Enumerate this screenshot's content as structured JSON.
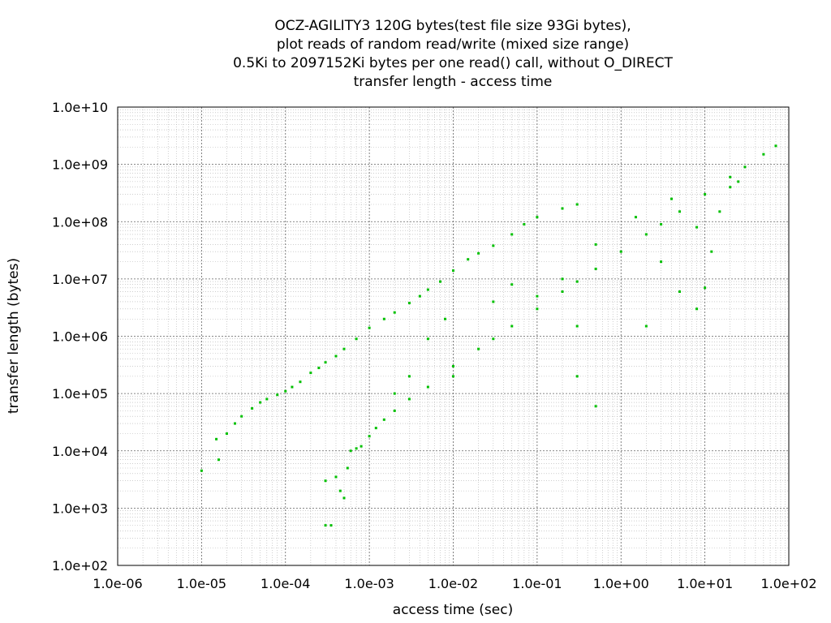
{
  "chart_data": {
    "type": "scatter",
    "title_lines": [
      "OCZ-AGILITY3 120G bytes(test file size 93Gi bytes),",
      "plot reads of random read/write (mixed size range)",
      "0.5Ki to 2097152Ki bytes per one read() call, without O_DIRECT",
      "transfer length - access time"
    ],
    "xlabel": "access time (sec)",
    "ylabel": "transfer length (bytes)",
    "x_scale": "log",
    "y_scale": "log",
    "xlim": [
      1e-06,
      100
    ],
    "ylim": [
      100,
      10000000000.0
    ],
    "x_ticks": [
      "1.0e-06",
      "1.0e-05",
      "1.0e-04",
      "1.0e-03",
      "1.0e-02",
      "1.0e-01",
      "1.0e+00",
      "1.0e+01",
      "1.0e+02"
    ],
    "y_ticks": [
      "1.0e+02",
      "1.0e+03",
      "1.0e+04",
      "1.0e+05",
      "1.0e+06",
      "1.0e+07",
      "1.0e+08",
      "1.0e+09",
      "1.0e+10"
    ],
    "grid": true,
    "series_color": "#00c000",
    "series": [
      {
        "name": "",
        "points": [
          [
            1e-05,
            4500
          ],
          [
            1.5e-05,
            16000
          ],
          [
            1.6e-05,
            7000
          ],
          [
            2e-05,
            20000
          ],
          [
            2.5e-05,
            30000
          ],
          [
            3e-05,
            40000
          ],
          [
            4e-05,
            55000
          ],
          [
            5e-05,
            70000
          ],
          [
            6e-05,
            80000
          ],
          [
            8e-05,
            95000
          ],
          [
            0.0001,
            110000
          ],
          [
            0.00012,
            130000
          ],
          [
            0.00015,
            160000
          ],
          [
            0.0002,
            230000
          ],
          [
            0.00025,
            280000
          ],
          [
            0.0003,
            350000
          ],
          [
            0.0004,
            450000
          ],
          [
            0.0005,
            600000
          ],
          [
            0.0007,
            900000
          ],
          [
            0.001,
            1400000
          ],
          [
            0.0015,
            2000000
          ],
          [
            0.002,
            2600000
          ],
          [
            0.003,
            3800000
          ],
          [
            0.004,
            5000000
          ],
          [
            0.005,
            6500000
          ],
          [
            0.007,
            9000000
          ],
          [
            0.01,
            14000000
          ],
          [
            0.015,
            22000000
          ],
          [
            0.02,
            28000000
          ],
          [
            0.03,
            38000000
          ],
          [
            0.05,
            60000000
          ],
          [
            0.07,
            90000000
          ],
          [
            0.1,
            120000000
          ],
          [
            0.2,
            170000000
          ],
          [
            0.3,
            200000000
          ],
          [
            0.0003,
            500
          ],
          [
            0.00035,
            500
          ],
          [
            0.0003,
            3000
          ],
          [
            0.0004,
            3500
          ],
          [
            0.00045,
            2000
          ],
          [
            0.0005,
            1500
          ],
          [
            0.00055,
            5000
          ],
          [
            0.0006,
            10000
          ],
          [
            0.0007,
            11000
          ],
          [
            0.0008,
            12000
          ],
          [
            0.001,
            18000
          ],
          [
            0.0012,
            25000
          ],
          [
            0.0015,
            35000
          ],
          [
            0.002,
            50000
          ],
          [
            0.003,
            80000
          ],
          [
            0.005,
            130000
          ],
          [
            0.01,
            300000
          ],
          [
            0.02,
            600000
          ],
          [
            0.03,
            900000
          ],
          [
            0.05,
            1500000
          ],
          [
            0.1,
            3000000
          ],
          [
            0.2,
            6000000
          ],
          [
            0.3,
            9000000
          ],
          [
            0.5,
            15000000
          ],
          [
            1.0,
            30000000
          ],
          [
            2.0,
            60000000
          ],
          [
            3.0,
            90000000
          ],
          [
            5.0,
            150000000
          ],
          [
            10.0,
            300000000
          ],
          [
            20.0,
            600000000
          ],
          [
            30.0,
            900000000
          ],
          [
            50.0,
            1500000000
          ],
          [
            70.0,
            2100000000
          ],
          [
            0.3,
            200000
          ],
          [
            0.5,
            60000
          ],
          [
            0.3,
            1500000
          ],
          [
            0.2,
            10000000
          ],
          [
            0.1,
            5000000
          ],
          [
            0.05,
            8000000
          ],
          [
            0.03,
            4000000
          ],
          [
            2.0,
            1500000
          ],
          [
            5.0,
            6000000
          ],
          [
            8.0,
            3000000
          ],
          [
            10.0,
            7000000
          ],
          [
            12.0,
            30000000
          ],
          [
            15.0,
            150000000
          ],
          [
            8.0,
            80000000
          ],
          [
            3.0,
            20000000
          ],
          [
            0.5,
            40000000
          ],
          [
            1.5,
            120000000
          ],
          [
            4.0,
            250000000
          ],
          [
            20.0,
            400000000
          ],
          [
            25.0,
            500000000
          ],
          [
            0.01,
            200000
          ],
          [
            0.008,
            2000000
          ],
          [
            0.005,
            900000
          ],
          [
            0.003,
            200000
          ],
          [
            0.002,
            100000
          ]
        ]
      }
    ]
  }
}
